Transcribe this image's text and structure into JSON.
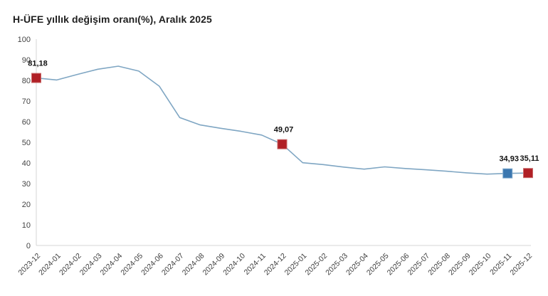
{
  "title": "H-ÜFE yıllık değişim oranı(%), Aralık 2025",
  "colors": {
    "background": "#ffffff",
    "line": "#7fa6c3",
    "axis": "#d6d6d6",
    "marker_red": "#b02026",
    "marker_red_border": "#c96a6a",
    "marker_blue": "#3b77af",
    "marker_blue_border": "#7fa8cc",
    "tick_text": "#3d3d3d",
    "label_text": "#111111"
  },
  "chart_data": {
    "type": "line",
    "title": "H-ÜFE yıllık değişim oranı(%), Aralık 2025",
    "xlabel": "",
    "ylabel": "",
    "ylim": [
      0,
      100
    ],
    "ytick_step": 10,
    "grid": false,
    "legend": "none",
    "x": [
      "2023-12",
      "2024-01",
      "2024-02",
      "2024-03",
      "2024-04",
      "2024-05",
      "2024-06",
      "2024-07",
      "2024-08",
      "2024-09",
      "2024-10",
      "2024-11",
      "2024-12",
      "2025-01",
      "2025-02",
      "2025-03",
      "2025-04",
      "2025-05",
      "2025-06",
      "2025-07",
      "2025-08",
      "2025-09",
      "2025-10",
      "2025-11",
      "2025-12"
    ],
    "values": [
      81.18,
      80.2,
      82.9,
      85.4,
      86.9,
      84.5,
      77.2,
      62.0,
      58.4,
      56.8,
      55.3,
      53.5,
      49.07,
      40.1,
      39.2,
      38.0,
      37.0,
      38.1,
      37.3,
      36.7,
      36.0,
      35.2,
      34.6,
      34.93,
      35.11
    ],
    "annotated_points": [
      {
        "x": "2023-12",
        "value": 81.18,
        "label": "81,18",
        "marker": "red"
      },
      {
        "x": "2024-12",
        "value": 49.07,
        "label": "49,07",
        "marker": "red"
      },
      {
        "x": "2025-11",
        "value": 34.93,
        "label": "34,93",
        "marker": "blue"
      },
      {
        "x": "2025-12",
        "value": 35.11,
        "label": "35,11",
        "marker": "red"
      }
    ]
  }
}
